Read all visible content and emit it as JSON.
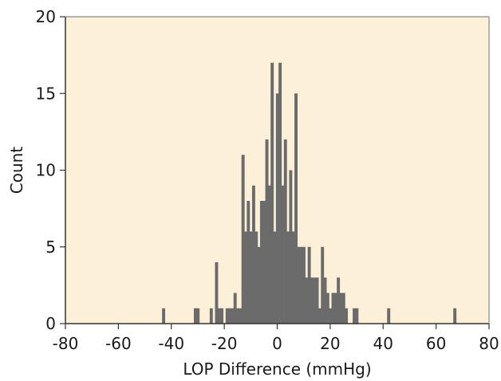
{
  "chart_data": {
    "type": "bar",
    "xlabel": "LOP Difference (mmHg)",
    "ylabel": "Count",
    "xlim": [
      -80,
      80
    ],
    "ylim": [
      0,
      20
    ],
    "x_ticks": [
      -80,
      -60,
      -40,
      -20,
      0,
      20,
      40,
      60,
      80
    ],
    "y_ticks": [
      0,
      5,
      10,
      15,
      20
    ],
    "grid": false,
    "bin_width": 1,
    "colors": {
      "plot_background": "#fdf0d8",
      "bar": "#6b6b6b",
      "axis": "#888888"
    },
    "bins": [
      {
        "x": -43,
        "count": 1
      },
      {
        "x": -31,
        "count": 1
      },
      {
        "x": -30,
        "count": 1
      },
      {
        "x": -25,
        "count": 1
      },
      {
        "x": -23,
        "count": 4
      },
      {
        "x": -22,
        "count": 1
      },
      {
        "x": -21,
        "count": 1
      },
      {
        "x": -19,
        "count": 1
      },
      {
        "x": -18,
        "count": 1
      },
      {
        "x": -17,
        "count": 1
      },
      {
        "x": -16,
        "count": 2
      },
      {
        "x": -15,
        "count": 1
      },
      {
        "x": -14,
        "count": 1
      },
      {
        "x": -13,
        "count": 11
      },
      {
        "x": -12,
        "count": 6
      },
      {
        "x": -11,
        "count": 8
      },
      {
        "x": -10,
        "count": 6
      },
      {
        "x": -9,
        "count": 9
      },
      {
        "x": -8,
        "count": 6
      },
      {
        "x": -7,
        "count": 5
      },
      {
        "x": -6,
        "count": 8
      },
      {
        "x": -5,
        "count": 8
      },
      {
        "x": -4,
        "count": 12
      },
      {
        "x": -3,
        "count": 9
      },
      {
        "x": -2,
        "count": 17
      },
      {
        "x": -1,
        "count": 6
      },
      {
        "x": 0,
        "count": 15
      },
      {
        "x": 1,
        "count": 17
      },
      {
        "x": 2,
        "count": 9
      },
      {
        "x": 3,
        "count": 12
      },
      {
        "x": 4,
        "count": 6
      },
      {
        "x": 5,
        "count": 10
      },
      {
        "x": 6,
        "count": 6
      },
      {
        "x": 7,
        "count": 15
      },
      {
        "x": 8,
        "count": 5
      },
      {
        "x": 9,
        "count": 5
      },
      {
        "x": 10,
        "count": 5
      },
      {
        "x": 11,
        "count": 3
      },
      {
        "x": 12,
        "count": 5
      },
      {
        "x": 13,
        "count": 3
      },
      {
        "x": 14,
        "count": 3
      },
      {
        "x": 15,
        "count": 3
      },
      {
        "x": 16,
        "count": 1
      },
      {
        "x": 17,
        "count": 5
      },
      {
        "x": 18,
        "count": 3
      },
      {
        "x": 19,
        "count": 2
      },
      {
        "x": 20,
        "count": 1
      },
      {
        "x": 21,
        "count": 2
      },
      {
        "x": 22,
        "count": 2
      },
      {
        "x": 23,
        "count": 3
      },
      {
        "x": 24,
        "count": 2
      },
      {
        "x": 25,
        "count": 2
      },
      {
        "x": 26,
        "count": 1
      },
      {
        "x": 29,
        "count": 1
      },
      {
        "x": 30,
        "count": 1
      },
      {
        "x": 42,
        "count": 1
      },
      {
        "x": 67,
        "count": 1
      }
    ]
  }
}
